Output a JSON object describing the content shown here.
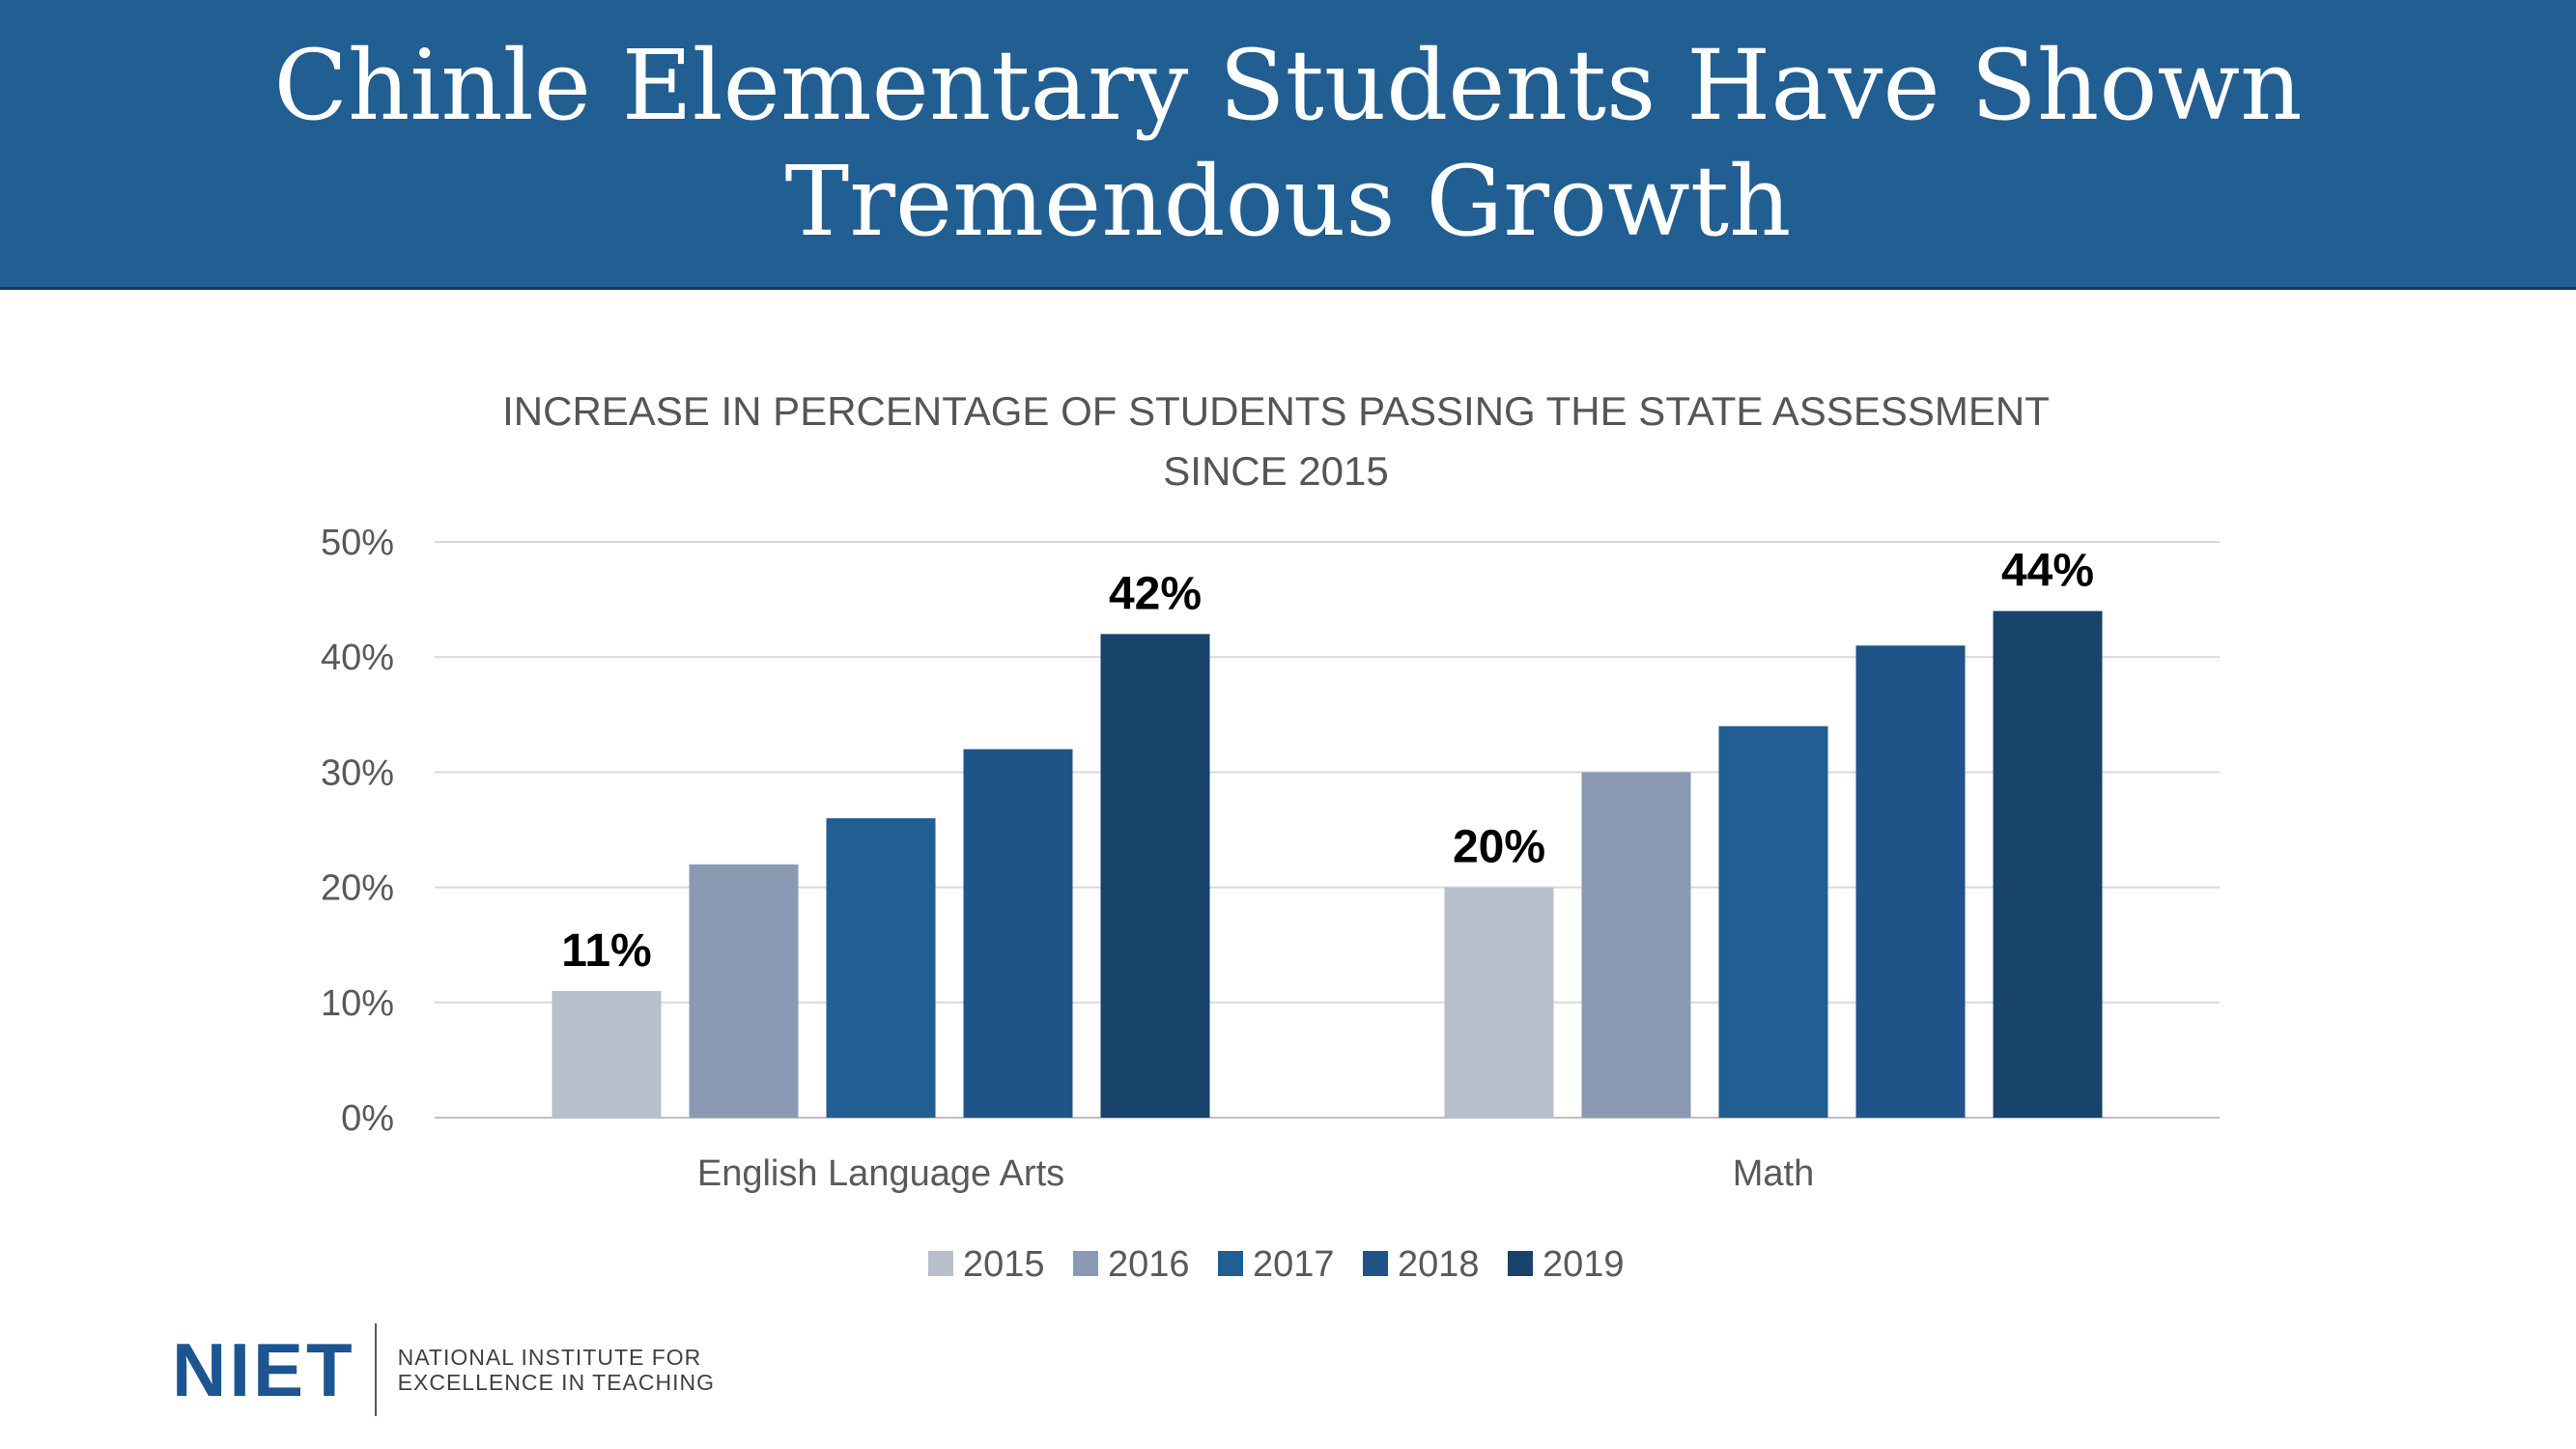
{
  "header": {
    "title_line1": "Chinle Elementary Students Have Shown",
    "title_line2": "Tremendous Growth"
  },
  "chart_data": {
    "type": "bar",
    "title_line1": "INCREASE IN PERCENTAGE OF STUDENTS PASSING THE STATE ASSESSMENT",
    "title_line2": "SINCE 2015",
    "categories": [
      "English Language Arts",
      "Math"
    ],
    "series": [
      {
        "name": "2015",
        "values": [
          11,
          20
        ],
        "color": "#b7bfcc"
      },
      {
        "name": "2016",
        "values": [
          22,
          30
        ],
        "color": "#8a9ab2"
      },
      {
        "name": "2017",
        "values": [
          26,
          34
        ],
        "color": "#215e92"
      },
      {
        "name": "2018",
        "values": [
          32,
          41
        ],
        "color": "#1f5488"
      },
      {
        "name": "2019",
        "values": [
          42,
          44
        ],
        "color": "#18436b"
      }
    ],
    "data_labels": [
      {
        "series": 0,
        "category": 0,
        "text": "11%"
      },
      {
        "series": 4,
        "category": 0,
        "text": "42%"
      },
      {
        "series": 0,
        "category": 1,
        "text": "20%"
      },
      {
        "series": 4,
        "category": 1,
        "text": "44%"
      }
    ],
    "y_ticks": [
      "0%",
      "10%",
      "20%",
      "30%",
      "40%",
      "50%"
    ],
    "ylim": [
      0,
      50
    ],
    "grid": true,
    "legend_position": "bottom"
  },
  "logo": {
    "mark": "NIET",
    "line1": "NATIONAL INSTITUTE FOR",
    "line2": "EXCELLENCE IN TEACHING"
  }
}
